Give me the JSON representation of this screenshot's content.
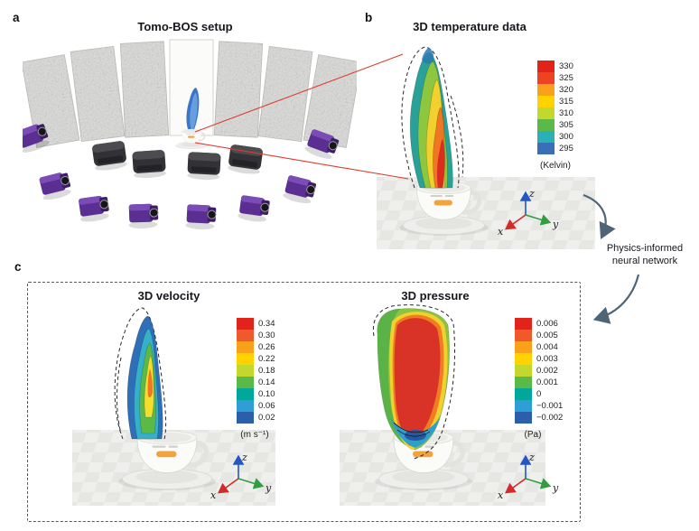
{
  "panels": {
    "a": {
      "label": "a",
      "title": "Tomo-BOS setup"
    },
    "b": {
      "label": "b",
      "title": "3D temperature data",
      "colorbar": {
        "unit": "(Kelvin)",
        "ticks": [
          "330",
          "325",
          "320",
          "315",
          "310",
          "305",
          "300",
          "295"
        ],
        "colors": [
          "#e2231a",
          "#ef4123",
          "#f9a11b",
          "#ffd200",
          "#c3d82e",
          "#5bb947",
          "#2ab0b5",
          "#3a6fb7"
        ]
      },
      "axes": {
        "x": "x",
        "y": "y",
        "z": "z"
      }
    },
    "c": {
      "label": "c",
      "velocity": {
        "title": "3D velocity",
        "colorbar": {
          "unit": "(m s⁻¹)",
          "ticks": [
            "0.34",
            "0.30",
            "0.26",
            "0.22",
            "0.18",
            "0.14",
            "0.10",
            "0.06",
            "0.02"
          ],
          "colors": [
            "#e2231a",
            "#f0592b",
            "#f9a11b",
            "#ffd200",
            "#c3d82e",
            "#5bb947",
            "#00a79b",
            "#2e9fd4",
            "#2b5fac"
          ]
        },
        "axes": {
          "x": "x",
          "y": "y",
          "z": "z"
        }
      },
      "pressure": {
        "title": "3D pressure",
        "colorbar": {
          "unit": "(Pa)",
          "ticks": [
            "0.006",
            "0.005",
            "0.004",
            "0.003",
            "0.002",
            "0.001",
            "0",
            "−0.001",
            "−0.002"
          ],
          "colors": [
            "#e2231a",
            "#f0592b",
            "#f9a11b",
            "#ffd200",
            "#c3d82e",
            "#5bb947",
            "#00a79b",
            "#2e9fd4",
            "#2b5fac"
          ]
        },
        "axes": {
          "x": "x",
          "y": "y",
          "z": "z"
        }
      }
    }
  },
  "connector": {
    "label": "Physics-informed neural network"
  }
}
